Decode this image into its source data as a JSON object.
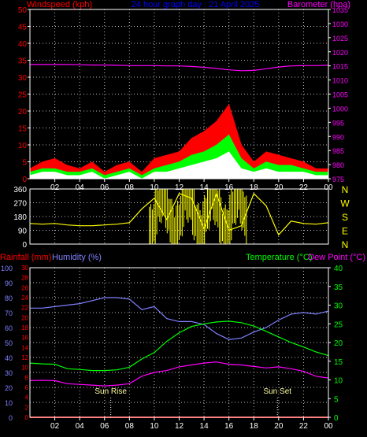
{
  "header": {
    "left_label": "Windspeed (kph)",
    "center_label": "24 hour graph day : 21 April 2025",
    "right_label": "Barometer (hpa)"
  },
  "colors": {
    "gust": "#ff0000",
    "average": "#00ff00",
    "lull": "#ffffff",
    "barometer": "#ff00ff",
    "direction": "#ffff00",
    "rain": "#ff0000",
    "humidity": "#8080ff",
    "temperature": "#00ff00",
    "dewpoint": "#ff00ff",
    "axis": "#ffffff",
    "grid": "#bbbbbb"
  },
  "x_ticks": [
    "02",
    "04",
    "06",
    "08",
    "10",
    "12",
    "14",
    "16",
    "18",
    "20",
    "22",
    "00"
  ],
  "wind_axis_left": [
    "50",
    "45",
    "40",
    "35",
    "30",
    "25",
    "20",
    "15",
    "10",
    "5",
    "0"
  ],
  "baro_axis_right": [
    "1035",
    "1030",
    "1025",
    "1020",
    "1015",
    "1010",
    "1005",
    "1000",
    "995",
    "990",
    "985",
    "980",
    "975"
  ],
  "dir_axis_left": [
    "360",
    "270",
    "180",
    "90",
    "0"
  ],
  "dir_axis_right": [
    "N",
    "W",
    "S",
    "E",
    "N"
  ],
  "bottom_labels": {
    "rainfall": "Rainfall (mm)",
    "humidity": "Humidity (%)",
    "temperature": "Temperature (°C)",
    "dewpoint": "Dew Point (°C)"
  },
  "hum_axis": [
    "100",
    "90",
    "80",
    "70",
    "60",
    "50",
    "40",
    "30",
    "20",
    "10",
    "0"
  ],
  "rain_axis": [
    "30",
    "28",
    "26",
    "24",
    "22",
    "20",
    "18",
    "16",
    "14",
    "12",
    "10",
    "8",
    "6",
    "4",
    "2",
    "0"
  ],
  "temp_axis": [
    "40",
    "35",
    "30",
    "25",
    "20",
    "15",
    "10",
    "5",
    "0"
  ],
  "annotations": {
    "sunrise": "Sun Rise",
    "sunset": "Sun Set"
  },
  "chart_data": [
    {
      "type": "area",
      "panel": "wind",
      "ylim": [
        0,
        50
      ],
      "y2lim": [
        975,
        1035
      ],
      "x_hours": [
        0,
        1,
        2,
        3,
        4,
        5,
        6,
        7,
        8,
        9,
        10,
        11,
        12,
        13,
        14,
        15,
        16,
        17,
        18,
        19,
        20,
        21,
        22,
        23,
        24
      ],
      "series": [
        {
          "name": "Windspeed (kph)",
          "role": "gust",
          "values": [
            3,
            5,
            6,
            4,
            3,
            5,
            2,
            4,
            5,
            2,
            6,
            7,
            8,
            12,
            14,
            17,
            22,
            10,
            5,
            8,
            7,
            6,
            5,
            3,
            3
          ]
        },
        {
          "name": "Windspeed (kph)",
          "role": "average",
          "values": [
            2,
            3,
            3,
            2,
            2,
            3,
            1,
            2,
            3,
            1,
            3,
            4,
            5,
            7,
            8,
            10,
            13,
            6,
            3,
            5,
            4,
            4,
            3,
            2,
            2
          ]
        },
        {
          "name": "Windspeed (kph)",
          "role": "lull",
          "values": [
            1,
            2,
            2,
            1,
            1,
            2,
            0,
            1,
            2,
            0,
            2,
            2,
            3,
            4,
            5,
            6,
            8,
            3,
            2,
            3,
            2,
            2,
            2,
            1,
            1
          ]
        },
        {
          "name": "Barometer (hpa)",
          "axis": "right",
          "values": [
            1015.5,
            1015.5,
            1015.5,
            1015.5,
            1015.4,
            1015.3,
            1015.3,
            1015.2,
            1015.1,
            1015.1,
            1015.1,
            1015.0,
            1015.0,
            1014.8,
            1014.5,
            1014.1,
            1013.6,
            1013.3,
            1013.4,
            1014.0,
            1014.6,
            1015.0,
            1015.1,
            1015.1,
            1015.2
          ]
        }
      ]
    },
    {
      "type": "line",
      "panel": "direction",
      "ylim": [
        0,
        360
      ],
      "x_hours": [
        0,
        1,
        2,
        3,
        4,
        5,
        6,
        7,
        8,
        9,
        10,
        11,
        12,
        13,
        14,
        15,
        16,
        17,
        18,
        19,
        20,
        21,
        22,
        23,
        24
      ],
      "values": [
        135,
        130,
        135,
        125,
        120,
        120,
        125,
        130,
        140,
        230,
        300,
        160,
        330,
        300,
        100,
        330,
        90,
        120,
        330,
        250,
        60,
        150,
        135,
        130,
        140
      ]
    },
    {
      "type": "line",
      "panel": "temp_hum",
      "x_hours": [
        0,
        1,
        2,
        3,
        4,
        5,
        6,
        7,
        8,
        9,
        10,
        11,
        12,
        13,
        14,
        15,
        16,
        17,
        18,
        19,
        20,
        21,
        22,
        23,
        24
      ],
      "series": [
        {
          "name": "Humidity (%)",
          "axis": "humidity",
          "ylim": [
            0,
            100
          ],
          "values": [
            73,
            73,
            74,
            75,
            76,
            78,
            80,
            80,
            79,
            72,
            74,
            66,
            64,
            64,
            62,
            56,
            52,
            53,
            57,
            60,
            65,
            69,
            70,
            69,
            71
          ]
        },
        {
          "name": "Temperature (°C)",
          "axis": "temperature",
          "ylim": [
            0,
            40
          ],
          "values": [
            14.5,
            14.3,
            14.2,
            13.0,
            12.8,
            12.5,
            12.5,
            12.7,
            13.4,
            15.6,
            17.3,
            20.3,
            22.6,
            24.3,
            25.0,
            25.5,
            25.7,
            25.3,
            24.4,
            23.0,
            21.5,
            20.0,
            18.8,
            17.5,
            16.5
          ]
        },
        {
          "name": "Dew Point (°C)",
          "axis": "temperature",
          "ylim": [
            0,
            40
          ],
          "values": [
            9.8,
            9.9,
            9.8,
            9.0,
            8.8,
            8.6,
            8.4,
            8.6,
            9.0,
            11.0,
            12.0,
            12.5,
            13.5,
            14.0,
            14.5,
            14.8,
            14.2,
            14.0,
            13.6,
            13.2,
            13.5,
            13.0,
            12.3,
            11.0,
            10.5
          ]
        },
        {
          "name": "Rainfall (mm)",
          "axis": "rain",
          "ylim": [
            0,
            30
          ],
          "values": [
            0,
            0,
            0,
            0,
            0,
            0,
            0,
            0,
            0,
            0,
            0,
            0,
            0,
            0,
            0,
            0,
            0,
            0,
            0,
            0,
            0,
            0,
            0,
            0,
            0
          ]
        }
      ],
      "annotations": {
        "sunrise_hour": 6.5,
        "sunset_hour": 19.9
      }
    }
  ]
}
